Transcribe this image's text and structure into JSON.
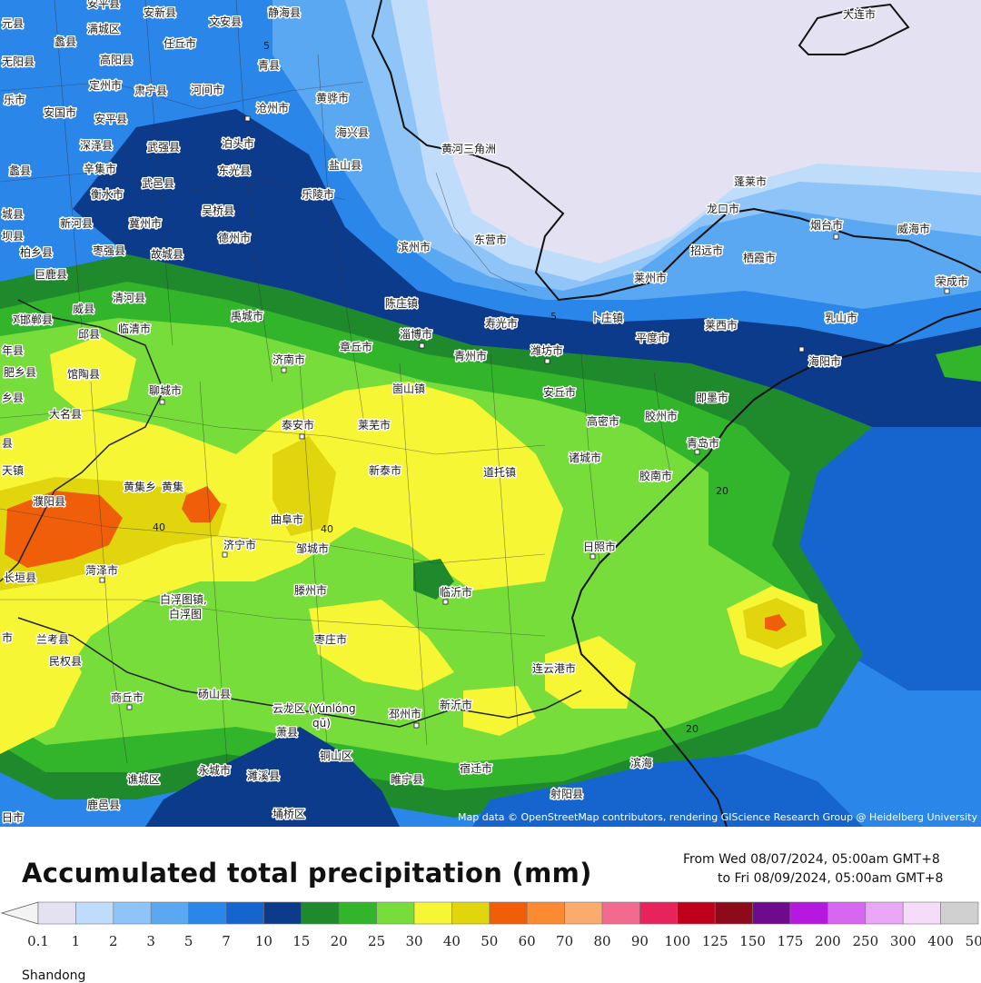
{
  "map": {
    "labels": [
      {
        "name": "label-anxin",
        "text": "安新县"
      },
      {
        "name": "label-wenan",
        "text": "文安县"
      },
      {
        "name": "label-jinghai",
        "text": "静海县"
      },
      {
        "name": "label-dalian",
        "text": "大连市"
      },
      {
        "name": "label-lixian",
        "text": "蠡县"
      },
      {
        "name": "label-rengqiu",
        "text": "任丘市"
      },
      {
        "name": "label-qingxian",
        "text": "青县"
      },
      {
        "name": "label-gaoyang",
        "text": "高阳县"
      },
      {
        "name": "label-suning",
        "text": "肃宁县"
      },
      {
        "name": "label-hejian",
        "text": "河间市"
      },
      {
        "name": "label-huanghua",
        "text": "黄骅市"
      },
      {
        "name": "label-anguo",
        "text": "安国市"
      },
      {
        "name": "label-anping",
        "text": "安平县"
      },
      {
        "name": "label-cangzhou",
        "text": "沧州市"
      },
      {
        "name": "label-haixing",
        "text": "海兴县"
      },
      {
        "name": "label-shenze",
        "text": "深泽县"
      },
      {
        "name": "label-wuqiang",
        "text": "武强县"
      },
      {
        "name": "label-botou",
        "text": "泊头市"
      },
      {
        "name": "label-yanshan",
        "text": "盐山县"
      },
      {
        "name": "label-xinji",
        "text": "辛集市"
      },
      {
        "name": "label-dongguang",
        "text": "东光县"
      },
      {
        "name": "label-hengshui",
        "text": "衡水市"
      },
      {
        "name": "label-wuyi",
        "text": "武邑县"
      },
      {
        "name": "label-laoling",
        "text": "乐陵市"
      },
      {
        "name": "label-huanghe-river",
        "text": "黄河三角洲"
      },
      {
        "name": "label-wuqiao",
        "text": "吴桥县"
      },
      {
        "name": "label-xinhe",
        "text": "新河县"
      },
      {
        "name": "label-jizhou",
        "text": "冀州市"
      },
      {
        "name": "label-dezhou",
        "text": "德州市"
      },
      {
        "name": "label-penglai",
        "text": "蓬莱市"
      },
      {
        "name": "label-longkou",
        "text": "龙口市"
      },
      {
        "name": "label-yantai",
        "text": "烟台市"
      },
      {
        "name": "label-weihai",
        "text": "威海市"
      },
      {
        "name": "label-bainxiang",
        "text": "柏乡县"
      },
      {
        "name": "label-zaoqiang",
        "text": "枣强县"
      },
      {
        "name": "label-gucheng",
        "text": "故城县"
      },
      {
        "name": "label-binzhou",
        "text": "滨州市"
      },
      {
        "name": "label-dongying",
        "text": "东营市"
      },
      {
        "name": "label-zhaoyuan",
        "text": "招远市"
      },
      {
        "name": "label-qixia",
        "text": "栖霞市"
      },
      {
        "name": "label-julu",
        "text": "巨鹿县"
      },
      {
        "name": "label-laizhou",
        "text": "莱州市"
      },
      {
        "name": "label-rongcheng",
        "text": "荣成市"
      },
      {
        "name": "label-weixian",
        "text": "威县"
      },
      {
        "name": "label-qinghe",
        "text": "清河县"
      },
      {
        "name": "label-chenzhuang",
        "text": "陈庄镇"
      },
      {
        "name": "label-jize",
        "text": "鸡泽县"
      },
      {
        "name": "label-yucheng",
        "text": "禹城市"
      },
      {
        "name": "label-shouguang",
        "text": "寿光市"
      },
      {
        "name": "label-buxia",
        "text": "卜庄镇"
      },
      {
        "name": "label-laixi",
        "text": "莱西市"
      },
      {
        "name": "label-rushan",
        "text": "乳山市"
      },
      {
        "name": "label-qiuxian",
        "text": "邱县"
      },
      {
        "name": "label-linqing",
        "text": "临清市"
      },
      {
        "name": "label-zibo",
        "text": "淄博市"
      },
      {
        "name": "label-pingdu",
        "text": "平度市"
      },
      {
        "name": "label-feixiang",
        "text": "肥乡县"
      },
      {
        "name": "label-guantao",
        "text": "馆陶县"
      },
      {
        "name": "label-jinan",
        "text": "济南市"
      },
      {
        "name": "label-zhangqiu",
        "text": "章丘市"
      },
      {
        "name": "label-qingzhou",
        "text": "青州市"
      },
      {
        "name": "label-weifang",
        "text": "潍坊市"
      },
      {
        "name": "label-haiyang",
        "text": "海阳市"
      },
      {
        "name": "label-liaocheng",
        "text": "聊城市"
      },
      {
        "name": "label-zoushan",
        "text": "崮山镇"
      },
      {
        "name": "label-anqiu",
        "text": "安丘市"
      },
      {
        "name": "label-jimo",
        "text": "即墨市"
      },
      {
        "name": "label-daming",
        "text": "大名县"
      },
      {
        "name": "label-taian",
        "text": "泰安市"
      },
      {
        "name": "label-laiwu",
        "text": "莱芜市"
      },
      {
        "name": "label-gaomi",
        "text": "高密市"
      },
      {
        "name": "label-jiaozhou",
        "text": "胶州市"
      },
      {
        "name": "label-qingdao",
        "text": "青岛市"
      },
      {
        "name": "label-xintai",
        "text": "新泰市"
      },
      {
        "name": "label-zhuwang",
        "text": "诸城市"
      },
      {
        "name": "label-daotuo",
        "text": "道托镇"
      },
      {
        "name": "label-jiaonan",
        "text": "胶南市"
      },
      {
        "name": "label-huangjixiang",
        "text": "黄集乡"
      },
      {
        "name": "label-huangji",
        "text": "黄集"
      },
      {
        "name": "label-puyang",
        "text": "濮阳县"
      },
      {
        "name": "label-qufu",
        "text": "曲阜市"
      },
      {
        "name": "label-jining",
        "text": "济宁市"
      },
      {
        "name": "label-zoucheng",
        "text": "邹城市"
      },
      {
        "name": "label-rizhao",
        "text": "日照市"
      },
      {
        "name": "label-changyuan",
        "text": "长垣县"
      },
      {
        "name": "label-heze",
        "text": "菏泽市"
      },
      {
        "name": "label-linyi",
        "text": "临沂市"
      },
      {
        "name": "label-tengzhou",
        "text": "滕州市"
      },
      {
        "name": "label-baimiao",
        "text": "白浮图镇,"
      },
      {
        "name": "label-baimiao2",
        "text": "白浮图"
      },
      {
        "name": "label-lankao",
        "text": "兰考县"
      },
      {
        "name": "label-minquan",
        "text": "民权县"
      },
      {
        "name": "label-zaozhuang",
        "text": "枣庄市"
      },
      {
        "name": "label-lianyungang",
        "text": "连云港市"
      },
      {
        "name": "label-shangqiu",
        "text": "商丘市"
      },
      {
        "name": "label-dangshan",
        "text": "砀山县"
      },
      {
        "name": "label-yunlong",
        "text": "云龙区 (Yúnlóng"
      },
      {
        "name": "label-yunlong-qu",
        "text": "qū)"
      },
      {
        "name": "label-pizhou",
        "text": "邳州市"
      },
      {
        "name": "label-xinyi",
        "text": "新沂市"
      },
      {
        "name": "label-xiaoxian",
        "text": "萧县"
      },
      {
        "name": "label-tongshan",
        "text": "铜山区"
      },
      {
        "name": "label-binhai",
        "text": "滨海"
      },
      {
        "name": "label-qiaocheng",
        "text": "谯城区"
      },
      {
        "name": "label-yongcheng",
        "text": "永城市"
      },
      {
        "name": "label-suixi",
        "text": "濉溪县"
      },
      {
        "name": "label-suining",
        "text": "睢宁县"
      },
      {
        "name": "label-suqian",
        "text": "宿迁市"
      },
      {
        "name": "label-sheyang",
        "text": "射阳县"
      },
      {
        "name": "label-luyi",
        "text": "鹿邑县"
      },
      {
        "name": "label-yongqiao",
        "text": "埇桥区"
      },
      {
        "name": "label-left-riyang",
        "text": "日市"
      },
      {
        "name": "label-left-wuyang",
        "text": "无阳县"
      },
      {
        "name": "label-left-shi1",
        "text": "乐市"
      },
      {
        "name": "label-left-pingxian",
        "text": "蠡县"
      },
      {
        "name": "label-left-chengcheng",
        "text": "城县"
      },
      {
        "name": "label-left-haoxian",
        "text": "邯郸县"
      },
      {
        "name": "label-left-anyang",
        "text": "年县"
      },
      {
        "name": "label-left-xiangxian",
        "text": "乡县"
      },
      {
        "name": "label-left-tian",
        "text": "天镇"
      },
      {
        "name": "label-left-shixian",
        "text": "县"
      },
      {
        "name": "label-left-baxian",
        "text": "坝县"
      },
      {
        "name": "label-mancheng",
        "text": "满城区"
      },
      {
        "name": "label-dingzhou",
        "text": "定州市"
      },
      {
        "name": "label-left-yanxian",
        "text": "元县"
      },
      {
        "name": "label-left-shi2",
        "text": "市"
      },
      {
        "name": "label-anping2",
        "text": "安平县"
      }
    ],
    "isolines": [
      "5",
      "5",
      "20",
      "20",
      "40",
      "40"
    ],
    "attribution": "Map data © OpenStreetMap contributors, rendering GIScience Research Group @ Heidelberg University"
  },
  "title": "Accumulated total precipitation (mm)",
  "time_range": {
    "from": "From Wed 08/07/2024, 05:00am GMT+8",
    "to": "to Fri 08/09/2024, 05:00am GMT+8"
  },
  "legend": {
    "ticks": [
      "0.1",
      "1",
      "2",
      "3",
      "5",
      "7",
      "10",
      "15",
      "20",
      "25",
      "30",
      "40",
      "50",
      "60",
      "70",
      "80",
      "90",
      "100",
      "125",
      "150",
      "175",
      "200",
      "250",
      "300",
      "400",
      "500"
    ],
    "colors": [
      "#e4e2f2",
      "#bfdcfb",
      "#8ec4f8",
      "#5aa8f2",
      "#2a86e8",
      "#1665cf",
      "#0d3b8c",
      "#1e8a2c",
      "#32b52b",
      "#77dd3b",
      "#f6f635",
      "#e1d60e",
      "#f05e0a",
      "#fb8a32",
      "#fcab6f",
      "#f26a8e",
      "#e8225b",
      "#c0001a",
      "#8c0a1a",
      "#6e0b8c",
      "#b718e0",
      "#d766f0",
      "#e9a7f5",
      "#f5dcf9",
      "#d0d0d0"
    ],
    "arrow_color": "#f3f3f3"
  },
  "region": "Shandong"
}
